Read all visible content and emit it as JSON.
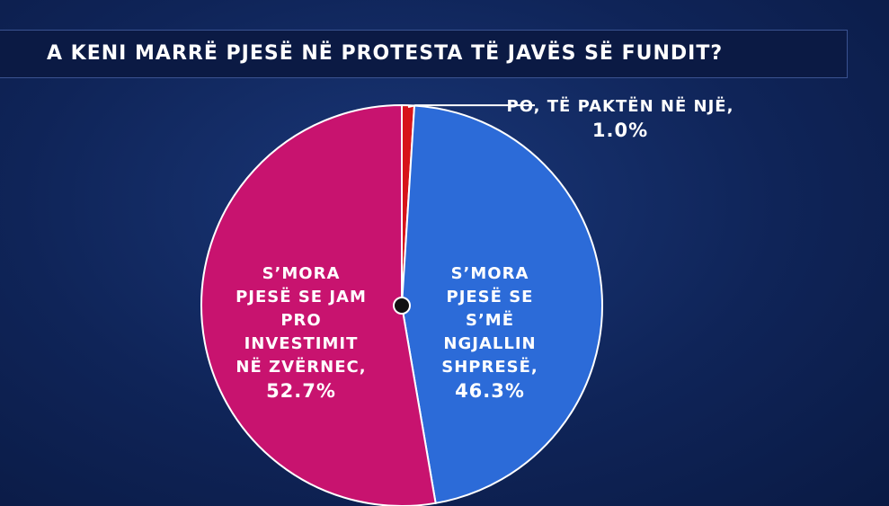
{
  "chart_data": {
    "type": "pie",
    "title": "A KENI MARRË PJESË NË PROTESTA TË JAVËS SË FUNDIT?",
    "categories": [
      "PO, TË PAKTËN NË NJË,",
      "S’MORA PJESË SE S’MË NGJALLIN SHPRESË,",
      "S’MORA PJESË SE JAM PRO INVESTIMIT NË ZVËRNEC,"
    ],
    "values": [
      1.0,
      46.3,
      52.7
    ],
    "value_labels": [
      "1.0%",
      "46.3%",
      "52.7%"
    ],
    "colors": [
      "#d7141a",
      "#2c6bd8",
      "#c8136f"
    ]
  }
}
